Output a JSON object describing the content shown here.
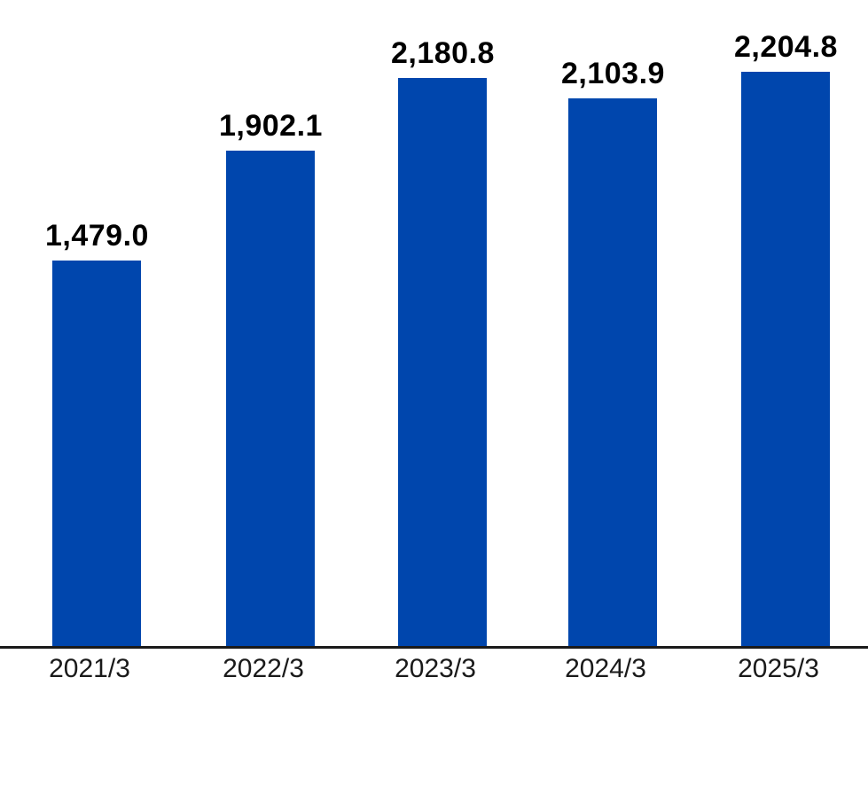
{
  "chart_data": {
    "type": "bar",
    "categories": [
      "2021/3",
      "2022/3",
      "2023/3",
      "2024/3",
      "2025/3"
    ],
    "values": [
      1479.0,
      1902.1,
      2180.8,
      2103.9,
      2204.8
    ],
    "value_labels": [
      "1,479.0",
      "1,902.1",
      "2,180.8",
      "2,103.9",
      "2,204.8"
    ],
    "title": "",
    "xlabel": "",
    "ylabel": "",
    "ylim": [
      0,
      2480
    ],
    "grid": false,
    "legend": false,
    "colors": {
      "bar": "#0046AD",
      "axis": "#1a1a1a",
      "value_label": "#000000",
      "tick_label": "#1a1a1a"
    }
  }
}
